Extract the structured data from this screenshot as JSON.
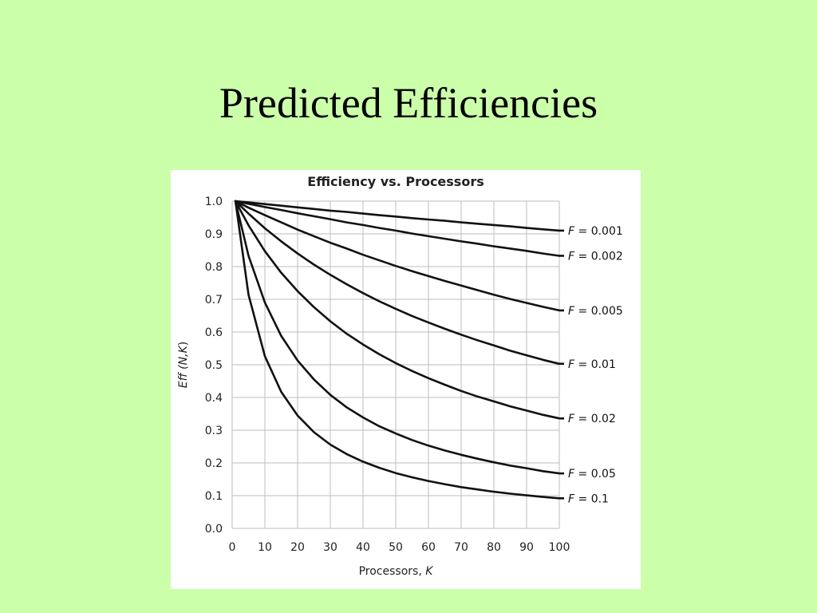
{
  "slide": {
    "title": "Predicted Efficiencies",
    "background": "#ccffaa"
  },
  "chart_data": {
    "type": "line",
    "title": "Efficiency vs. Processors",
    "xlabel_text": "Processors, ",
    "xlabel_var": "K",
    "ylabel_pre": "Eff (",
    "ylabel_vars": "N,K",
    "ylabel_post": ")",
    "xlim": [
      0,
      100
    ],
    "ylim": [
      0,
      1.0
    ],
    "x_ticks": [
      "0",
      "10",
      "20",
      "30",
      "40",
      "50",
      "60",
      "70",
      "80",
      "90",
      "100"
    ],
    "y_ticks": [
      "0.0",
      "0.1",
      "0.2",
      "0.3",
      "0.4",
      "0.5",
      "0.6",
      "0.7",
      "0.8",
      "0.9",
      "1.0"
    ],
    "grid": true,
    "x": [
      1,
      5,
      10,
      15,
      20,
      25,
      30,
      35,
      40,
      45,
      50,
      55,
      60,
      65,
      70,
      75,
      80,
      85,
      90,
      95,
      100
    ],
    "series": [
      {
        "name": "0.001",
        "values": [
          1.0,
          0.996,
          0.991,
          0.986,
          0.981,
          0.976,
          0.971,
          0.967,
          0.962,
          0.957,
          0.953,
          0.948,
          0.944,
          0.94,
          0.935,
          0.931,
          0.927,
          0.923,
          0.918,
          0.914,
          0.91
        ]
      },
      {
        "name": "0.002",
        "values": [
          1.0,
          0.992,
          0.982,
          0.973,
          0.963,
          0.954,
          0.945,
          0.935,
          0.927,
          0.918,
          0.91,
          0.901,
          0.893,
          0.885,
          0.877,
          0.87,
          0.862,
          0.855,
          0.848,
          0.84,
          0.833
        ]
      },
      {
        "name": "0.005",
        "values": [
          1.0,
          0.98,
          0.957,
          0.935,
          0.913,
          0.893,
          0.873,
          0.855,
          0.836,
          0.819,
          0.802,
          0.786,
          0.771,
          0.756,
          0.742,
          0.728,
          0.714,
          0.701,
          0.689,
          0.677,
          0.666
        ]
      },
      {
        "name": "0.01",
        "values": [
          1.0,
          0.962,
          0.917,
          0.877,
          0.84,
          0.806,
          0.775,
          0.746,
          0.719,
          0.694,
          0.671,
          0.649,
          0.629,
          0.61,
          0.592,
          0.575,
          0.559,
          0.543,
          0.529,
          0.515,
          0.503
        ]
      },
      {
        "name": "0.02",
        "values": [
          1.0,
          0.926,
          0.847,
          0.781,
          0.725,
          0.676,
          0.633,
          0.595,
          0.562,
          0.532,
          0.505,
          0.481,
          0.459,
          0.439,
          0.42,
          0.403,
          0.388,
          0.373,
          0.36,
          0.347,
          0.336
        ]
      },
      {
        "name": "0.05",
        "values": [
          1.0,
          0.833,
          0.69,
          0.588,
          0.513,
          0.455,
          0.408,
          0.37,
          0.339,
          0.312,
          0.29,
          0.27,
          0.253,
          0.238,
          0.225,
          0.213,
          0.202,
          0.192,
          0.184,
          0.175,
          0.168
        ]
      },
      {
        "name": "0.1",
        "values": [
          1.0,
          0.714,
          0.526,
          0.417,
          0.345,
          0.294,
          0.256,
          0.227,
          0.204,
          0.185,
          0.169,
          0.156,
          0.145,
          0.135,
          0.126,
          0.119,
          0.112,
          0.106,
          0.101,
          0.096,
          0.092
        ]
      }
    ],
    "series_label_prefix": "F",
    "series_label_eq": " = "
  }
}
